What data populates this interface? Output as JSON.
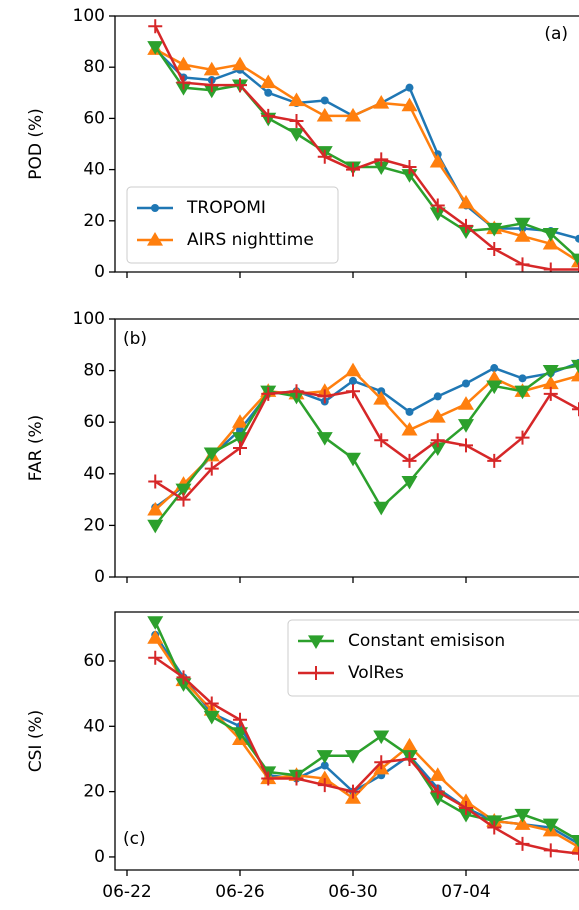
{
  "chart_data": [
    {
      "type": "line",
      "annotation": "(a)",
      "ylabel": "POD  (%)",
      "x": [
        "06-23",
        "06-24",
        "06-25",
        "06-26",
        "06-27",
        "06-28",
        "06-29",
        "06-30",
        "07-01",
        "07-02",
        "07-03",
        "07-04",
        "07-05",
        "07-06",
        "07-07",
        "07-08"
      ],
      "xlim": [
        "06-22",
        "07-08"
      ],
      "xticks": [
        "06-22",
        "06-26",
        "06-30",
        "07-04"
      ],
      "xticklabels": false,
      "ylim": [
        0,
        100
      ],
      "yticks": [
        0,
        20,
        40,
        60,
        80,
        100
      ],
      "legend": "lower left",
      "series": [
        {
          "name": "TROPOMI",
          "color": "#1f77b4",
          "marker": "o",
          "values": [
            87,
            76,
            75,
            79,
            70,
            66,
            67,
            61,
            66,
            72,
            46,
            26,
            17,
            17,
            16,
            13
          ]
        },
        {
          "name": "AIRS nighttime",
          "color": "#ff7f0e",
          "marker": "^",
          "values": [
            87,
            81,
            79,
            81,
            74,
            67,
            61,
            61,
            66,
            65,
            43,
            27,
            17,
            14,
            11,
            4
          ]
        },
        {
          "color": "#2ca02c",
          "marker": "v",
          "values": [
            88,
            72,
            71,
            73,
            60,
            54,
            47,
            41,
            41,
            38,
            23,
            16,
            17,
            19,
            15,
            5
          ]
        },
        {
          "color": "#d62728",
          "marker": "+",
          "values": [
            96,
            74,
            73,
            73,
            61,
            59,
            45,
            40,
            44,
            41,
            26,
            18,
            9,
            3,
            1,
            1
          ]
        }
      ]
    },
    {
      "type": "line",
      "annotation": "(b)",
      "ylabel": "FAR  (%)",
      "x": [
        "06-23",
        "06-24",
        "06-25",
        "06-26",
        "06-27",
        "06-28",
        "06-29",
        "06-30",
        "07-01",
        "07-02",
        "07-03",
        "07-04",
        "07-05",
        "07-06",
        "07-07",
        "07-08"
      ],
      "xlim": [
        "06-22",
        "07-08"
      ],
      "xticks": [
        "06-22",
        "06-26",
        "06-30",
        "07-04"
      ],
      "xticklabels": false,
      "ylim": [
        0,
        100
      ],
      "yticks": [
        0,
        20,
        40,
        60,
        80,
        100
      ],
      "series": [
        {
          "color": "#1f77b4",
          "marker": "o",
          "values": [
            27,
            35,
            47,
            57,
            71,
            72,
            68,
            76,
            72,
            64,
            70,
            75,
            81,
            77,
            79,
            83
          ]
        },
        {
          "color": "#ff7f0e",
          "marker": "^",
          "values": [
            26,
            36,
            47,
            60,
            72,
            71,
            72,
            80,
            69,
            57,
            62,
            67,
            77,
            72,
            75,
            78
          ]
        },
        {
          "color": "#2ca02c",
          "marker": "v",
          "values": [
            20,
            34,
            48,
            54,
            72,
            70,
            54,
            46,
            27,
            37,
            50,
            59,
            74,
            72,
            80,
            82
          ]
        },
        {
          "color": "#d62728",
          "marker": "+",
          "values": [
            37,
            30,
            42,
            50,
            71,
            72,
            70,
            72,
            53,
            45,
            53,
            51,
            45,
            54,
            71,
            65
          ]
        }
      ]
    },
    {
      "type": "line",
      "annotation": "(c)",
      "ylabel": "CSI (%)",
      "x": [
        "06-23",
        "06-24",
        "06-25",
        "06-26",
        "06-27",
        "06-28",
        "06-29",
        "06-30",
        "07-01",
        "07-02",
        "07-03",
        "07-04",
        "07-05",
        "07-06",
        "07-07",
        "07-08"
      ],
      "xlim": [
        "06-22",
        "07-08"
      ],
      "xticks": [
        "06-22",
        "06-26",
        "06-30",
        "07-04"
      ],
      "xticklabels": true,
      "ylim": [
        -4,
        75
      ],
      "yticks": [
        0,
        20,
        40,
        60
      ],
      "legend": "upper right",
      "series": [
        {
          "color": "#1f77b4",
          "marker": "o",
          "values": [
            68,
            55,
            44,
            40,
            25,
            24,
            28,
            20,
            25,
            31,
            21,
            15,
            11,
            10,
            9,
            4
          ]
        },
        {
          "color": "#ff7f0e",
          "marker": "^",
          "values": [
            67,
            54,
            45,
            36,
            24,
            25,
            24,
            18,
            27,
            34,
            25,
            17,
            11,
            10,
            8,
            3
          ]
        },
        {
          "name": "Constant emisison",
          "color": "#2ca02c",
          "marker": "v",
          "values": [
            72,
            53,
            43,
            38,
            26,
            25,
            31,
            31,
            37,
            31,
            18,
            13,
            11,
            13,
            10,
            5
          ]
        },
        {
          "name": "VolRes",
          "color": "#d62728",
          "marker": "+",
          "values": [
            61,
            55,
            47,
            42,
            24,
            24,
            22,
            20,
            29,
            30,
            20,
            15,
            9,
            4,
            2,
            1
          ]
        }
      ]
    }
  ]
}
